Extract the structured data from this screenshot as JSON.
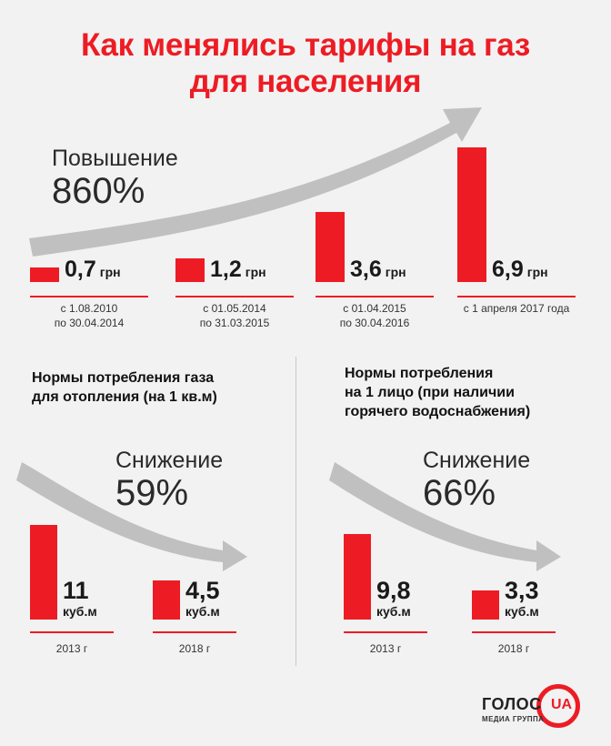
{
  "title_line1": "Как менялись тарифы на газ",
  "title_line2": "для населения",
  "colors": {
    "accent": "#ed1c24",
    "arrow": "#c0c0c0",
    "background": "#f2f2f2"
  },
  "tariffs": {
    "change_label": "Повышение",
    "change_value": "860%",
    "unit": "грн",
    "periods": [
      [
        "с 1.08.2010",
        "по 30.04.2014"
      ],
      [
        "с 01.05.2014",
        "по 31.03.2015"
      ],
      [
        "с 01.04.2015",
        "по 30.04.2016"
      ],
      [
        "с 1 апреля 2017 года"
      ]
    ]
  },
  "heating": {
    "subtitle_lines": [
      "Нормы потребления газа",
      "для отопления (на 1 кв.м)"
    ],
    "change_label": "Снижение",
    "change_value": "59%",
    "unit": "куб.м"
  },
  "person": {
    "subtitle_lines": [
      "Нормы потребления",
      "на 1 лицо (при наличии",
      "горячего водоснабжения)"
    ],
    "change_label": "Снижение",
    "change_value": "66%",
    "unit": "куб.м"
  },
  "logo": {
    "text": "ГОЛОС",
    "badge": "UA",
    "sub": "МЕДИА ГРУППА"
  },
  "chart_data": [
    {
      "type": "bar",
      "categories": [
        "с 1.08.2010 по 30.04.2014",
        "с 01.05.2014 по 31.03.2015",
        "с 01.04.2015 по 30.04.2016",
        "с 1 апреля 2017 года"
      ],
      "values": [
        0.7,
        1.2,
        3.6,
        6.9
      ],
      "labels": [
        "0,7",
        "1,2",
        "3,6",
        "6,9"
      ],
      "unit": "грн",
      "title": "Как менялись тарифы на газ для населения",
      "annotation": "Повышение 860%",
      "ylim": [
        0,
        6.9
      ]
    },
    {
      "type": "bar",
      "categories": [
        "2013 г",
        "2018 г"
      ],
      "values": [
        11,
        4.5
      ],
      "labels": [
        "11",
        "4,5"
      ],
      "unit": "куб.м",
      "title": "Нормы потребления газа для отопления (на 1 кв.м)",
      "annotation": "Снижение 59%",
      "ylim": [
        0,
        11
      ]
    },
    {
      "type": "bar",
      "categories": [
        "2013 г",
        "2018 г"
      ],
      "values": [
        9.8,
        3.3
      ],
      "labels": [
        "9,8",
        "3,3"
      ],
      "unit": "куб.м",
      "title": "Нормы потребления на 1 лицо (при наличии горячего водоснабжения)",
      "annotation": "Снижение 66%",
      "ylim": [
        0,
        9.8
      ]
    }
  ]
}
